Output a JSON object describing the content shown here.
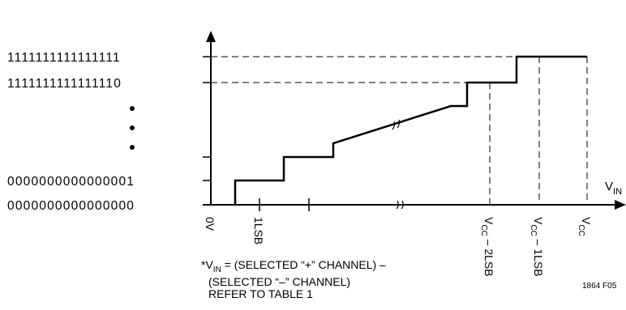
{
  "y_codes": {
    "top": "1111111111111111",
    "second": "1111111111111110",
    "third_from_bottom": "0000000000000001",
    "bottom": "0000000000000000"
  },
  "x_labels": {
    "origin": "0V",
    "lsb": "1LSB",
    "vcc_minus_2lsb": {
      "v": "V",
      "sub": "CC",
      "rest": " – 2LSB"
    },
    "vcc_minus_1lsb": {
      "v": "V",
      "sub": "CC",
      "rest": " – 1LSB"
    },
    "vcc": {
      "v": "V",
      "sub": "CC"
    }
  },
  "axis_label": {
    "v": "V",
    "sub": "IN"
  },
  "note": {
    "line1_prefix": "*V",
    "line1_sub": "IN",
    "line1_rest": " = (SELECTED “+” CHANNEL) –",
    "line2": "(SELECTED “–” CHANNEL)",
    "line3": "REFER TO TABLE 1"
  },
  "figure_id": "1864 F05"
}
